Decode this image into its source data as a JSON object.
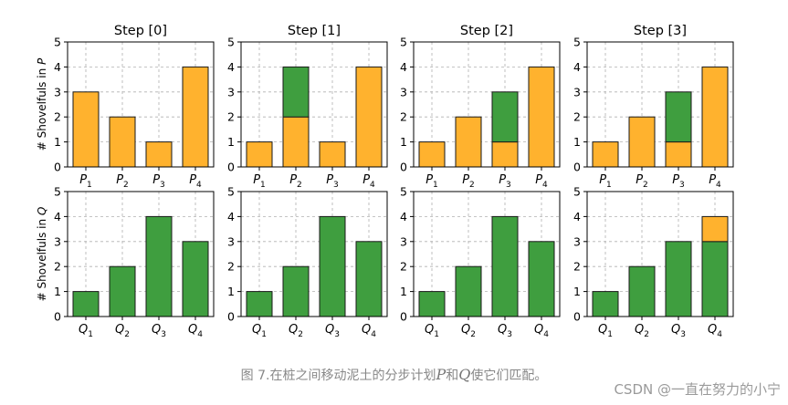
{
  "chart_data": {
    "type": "bar",
    "stacked": true,
    "grid": true,
    "ylim": [
      0,
      5
    ],
    "yticks": [
      0,
      1,
      2,
      3,
      4,
      5
    ],
    "row_ylabels": [
      "# Shovelfuls in P",
      "# Shovelfuls in Q"
    ],
    "colors": {
      "orange": "#FFB22E",
      "green": "#3F9E3F",
      "edge": "#1a1a1a",
      "grid": "#b0b0b0"
    },
    "panels": [
      {
        "title": "Step [0]",
        "row": 0,
        "col": 0,
        "categories": [
          {
            "base": "P",
            "sub": "1"
          },
          {
            "base": "P",
            "sub": "2"
          },
          {
            "base": "P",
            "sub": "3"
          },
          {
            "base": "P",
            "sub": "4"
          }
        ],
        "series": [
          {
            "color": "orange",
            "values": [
              3,
              2,
              1,
              4
            ]
          },
          {
            "color": "green",
            "values": [
              0,
              0,
              0,
              0
            ]
          }
        ]
      },
      {
        "title": "Step [1]",
        "row": 0,
        "col": 1,
        "categories": [
          {
            "base": "P",
            "sub": "1"
          },
          {
            "base": "P",
            "sub": "2"
          },
          {
            "base": "P",
            "sub": "3"
          },
          {
            "base": "P",
            "sub": "4"
          }
        ],
        "series": [
          {
            "color": "orange",
            "values": [
              1,
              2,
              1,
              4
            ]
          },
          {
            "color": "green",
            "values": [
              0,
              2,
              0,
              0
            ]
          }
        ]
      },
      {
        "title": "Step [2]",
        "row": 0,
        "col": 2,
        "categories": [
          {
            "base": "P",
            "sub": "1"
          },
          {
            "base": "P",
            "sub": "2"
          },
          {
            "base": "P",
            "sub": "3"
          },
          {
            "base": "P",
            "sub": "4"
          }
        ],
        "series": [
          {
            "color": "orange",
            "values": [
              1,
              2,
              1,
              4
            ]
          },
          {
            "color": "green",
            "values": [
              0,
              0,
              2,
              0
            ]
          }
        ]
      },
      {
        "title": "Step [3]",
        "row": 0,
        "col": 3,
        "categories": [
          {
            "base": "P",
            "sub": "1"
          },
          {
            "base": "P",
            "sub": "2"
          },
          {
            "base": "P",
            "sub": "3"
          },
          {
            "base": "P",
            "sub": "4"
          }
        ],
        "series": [
          {
            "color": "orange",
            "values": [
              1,
              2,
              1,
              4
            ]
          },
          {
            "color": "green",
            "values": [
              0,
              0,
              2,
              0
            ]
          }
        ]
      },
      {
        "title": "",
        "row": 1,
        "col": 0,
        "categories": [
          {
            "base": "Q",
            "sub": "1"
          },
          {
            "base": "Q",
            "sub": "2"
          },
          {
            "base": "Q",
            "sub": "3"
          },
          {
            "base": "Q",
            "sub": "4"
          }
        ],
        "series": [
          {
            "color": "green",
            "values": [
              1,
              2,
              4,
              3
            ]
          },
          {
            "color": "orange",
            "values": [
              0,
              0,
              0,
              0
            ]
          }
        ]
      },
      {
        "title": "",
        "row": 1,
        "col": 1,
        "categories": [
          {
            "base": "Q",
            "sub": "1"
          },
          {
            "base": "Q",
            "sub": "2"
          },
          {
            "base": "Q",
            "sub": "3"
          },
          {
            "base": "Q",
            "sub": "4"
          }
        ],
        "series": [
          {
            "color": "green",
            "values": [
              1,
              2,
              4,
              3
            ]
          },
          {
            "color": "orange",
            "values": [
              0,
              0,
              0,
              0
            ]
          }
        ]
      },
      {
        "title": "",
        "row": 1,
        "col": 2,
        "categories": [
          {
            "base": "Q",
            "sub": "1"
          },
          {
            "base": "Q",
            "sub": "2"
          },
          {
            "base": "Q",
            "sub": "3"
          },
          {
            "base": "Q",
            "sub": "4"
          }
        ],
        "series": [
          {
            "color": "green",
            "values": [
              1,
              2,
              4,
              3
            ]
          },
          {
            "color": "orange",
            "values": [
              0,
              0,
              0,
              0
            ]
          }
        ]
      },
      {
        "title": "",
        "row": 1,
        "col": 3,
        "categories": [
          {
            "base": "Q",
            "sub": "1"
          },
          {
            "base": "Q",
            "sub": "2"
          },
          {
            "base": "Q",
            "sub": "3"
          },
          {
            "base": "Q",
            "sub": "4"
          }
        ],
        "series": [
          {
            "color": "green",
            "values": [
              1,
              2,
              3,
              3
            ]
          },
          {
            "color": "orange",
            "values": [
              0,
              0,
              0,
              1
            ]
          }
        ]
      }
    ]
  },
  "caption": {
    "prefix": "图 7.在桩之间移动泥土的分步计划",
    "var1": "P",
    "mid": "和",
    "var2": "Q",
    "suffix": "使它们匹配。"
  },
  "watermark": "CSDN @一直在努力的小宁"
}
